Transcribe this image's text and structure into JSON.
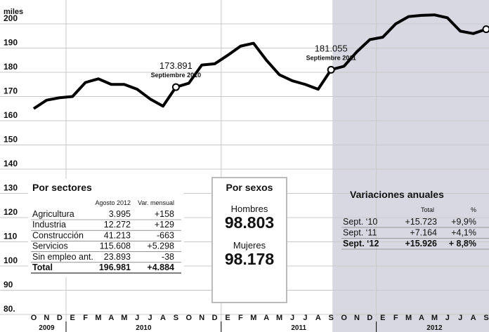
{
  "chart_data": {
    "type": "line",
    "ylabel": "miles",
    "categories": [
      "O",
      "N",
      "D",
      "E",
      "F",
      "M",
      "A",
      "M",
      "J",
      "J",
      "A",
      "S",
      "O",
      "N",
      "D",
      "E",
      "F",
      "M",
      "A",
      "M",
      "J",
      "J",
      "A",
      "S",
      "O",
      "N",
      "D",
      "E",
      "F",
      "M",
      "A",
      "M",
      "J",
      "J",
      "A",
      "S"
    ],
    "years": [
      "2009",
      "2010",
      "2011",
      "2012"
    ],
    "series": [
      {
        "color": "#000000",
        "values": [
          165,
          168.5,
          169.5,
          170,
          175.8,
          177.3,
          175,
          175,
          173,
          169,
          166,
          173.891,
          175.5,
          183,
          183.5,
          187,
          190.8,
          192,
          185,
          179,
          176.5,
          175,
          173,
          181.055,
          182.5,
          188.5,
          193.5,
          194.5,
          200,
          203,
          203.5,
          203.7,
          202.5,
          197,
          196,
          197.8
        ]
      }
    ],
    "ylim": [
      80,
      204
    ],
    "yticks": [
      {
        "value": 80,
        "label": "80."
      },
      90,
      100,
      110,
      120,
      130,
      140,
      150,
      160,
      170,
      180,
      190,
      200
    ],
    "grid": true,
    "annotations": [
      {
        "value": 173.891,
        "label": "173.891",
        "sub": "Septiembre 2010"
      },
      {
        "value": 181.055,
        "label": "181.055",
        "sub": "Septiembre 2011"
      }
    ]
  },
  "sectores": {
    "title": "Por sectores",
    "headers": [
      "Agosto 2012",
      "Var. mensual"
    ],
    "rows": [
      [
        "Agricultura",
        "3.995",
        "+158"
      ],
      [
        "Industria",
        "12.272",
        "+129"
      ],
      [
        "Construcción",
        "41.213",
        "-663"
      ],
      [
        "Servicios",
        "115.608",
        "+5.298"
      ],
      [
        "Sin empleo ant.",
        "23.893",
        "-38"
      ],
      [
        "Total",
        "196.981",
        "+4.884"
      ]
    ]
  },
  "sexos": {
    "title": "Por sexos",
    "items": [
      {
        "label": "Hombres",
        "value": "98.803"
      },
      {
        "label": "Mujeres",
        "value": "98.178"
      }
    ]
  },
  "variaciones": {
    "title": "Variaciones anuales",
    "headers": [
      "Total",
      "%"
    ],
    "rows": [
      [
        "Sept. ‘10",
        "+15.723",
        "+9,9%"
      ],
      [
        "Sept. ‘11",
        "+7.164",
        "+4,1%"
      ],
      [
        "Sept. ‘12",
        "+15.926",
        "+ 8,8%"
      ]
    ]
  }
}
